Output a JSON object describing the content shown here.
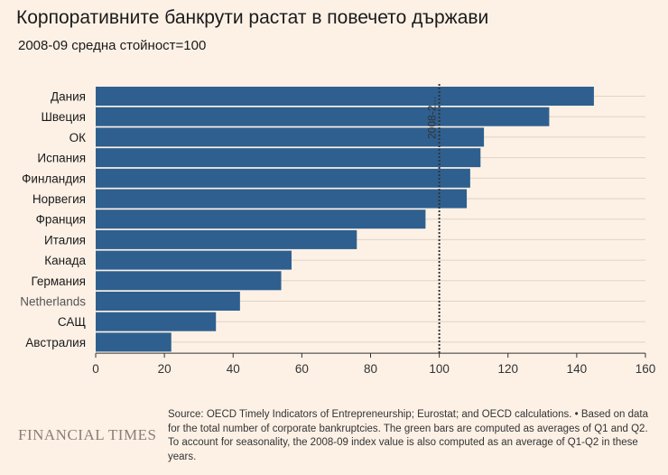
{
  "chart_data": {
    "type": "bar",
    "orientation": "horizontal",
    "title": "Корпоративните банкрути растат в повечето държави",
    "subtitle": "2008-09 средна стойност=100",
    "categories": [
      "Дания",
      "Швеция",
      "ОК",
      "Испания",
      "Финландия",
      "Норвегия",
      "Франция",
      "Италия",
      "Канада",
      "Германия",
      "Netherlands",
      "САЩ",
      "Австралия"
    ],
    "values": [
      145,
      132,
      113,
      112,
      109,
      108,
      96,
      76,
      57,
      54,
      42,
      35,
      22
    ],
    "xlim": [
      0,
      160
    ],
    "xticks": [
      "0",
      "20",
      "40",
      "60",
      "80",
      "100",
      "120",
      "140",
      "160"
    ],
    "reference_line": {
      "value": 100,
      "label": "2008-2..."
    },
    "bar_color": "#2e5f8f",
    "grid": true
  },
  "footer": {
    "logo": "FINANCIAL TIMES",
    "source": "Source: OECD Timely Indicators of Entrepreneurship; Eurostat; and OECD calculations. • Based on data for the total number of corporate bankruptcies. The green bars are computed as averages of Q1 and Q2. To account for seasonality, the 2008-09 index value is also computed as an average of Q1-Q2 in these years."
  }
}
